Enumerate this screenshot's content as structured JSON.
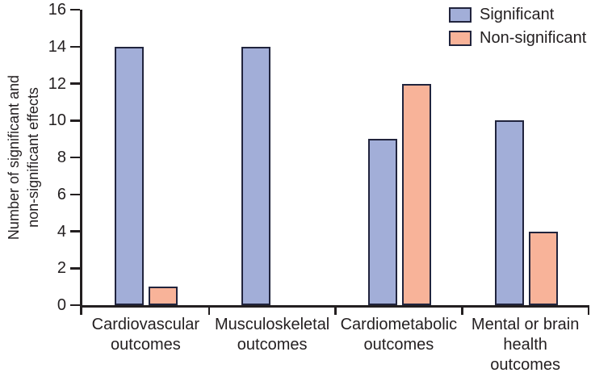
{
  "chart_data": {
    "type": "bar",
    "title": "",
    "xlabel": "",
    "ylabel": "Number of significant and non-significant effects",
    "ylabel_lines": [
      "Number of significant and",
      "non-significant effects"
    ],
    "categories": [
      "Cardiovascular outcomes",
      "Musculoskeletal outcomes",
      "Cardiometabolic outcomes",
      "Mental or brain health outcomes"
    ],
    "category_label_lines": [
      [
        "Cardiovascular",
        "outcomes"
      ],
      [
        "Musculoskeletal",
        "outcomes"
      ],
      [
        "Cardiometabolic",
        "outcomes"
      ],
      [
        "Mental or brain",
        "health",
        "outcomes"
      ]
    ],
    "series": [
      {
        "name": "Significant",
        "color": "#a2aed8",
        "values": [
          14,
          14,
          9,
          10
        ]
      },
      {
        "name": "Non-significant",
        "color": "#f8b399",
        "values": [
          1,
          0,
          12,
          4
        ]
      }
    ],
    "ylim": [
      0,
      16
    ],
    "yticks": [
      0,
      2,
      4,
      6,
      8,
      10,
      12,
      14,
      16
    ],
    "grid": false,
    "legend_position": "top-right",
    "bar_border_color": "#21243d",
    "axis_color": "#231f20",
    "text_color": "#231f20",
    "background_color": "#ffffff"
  }
}
